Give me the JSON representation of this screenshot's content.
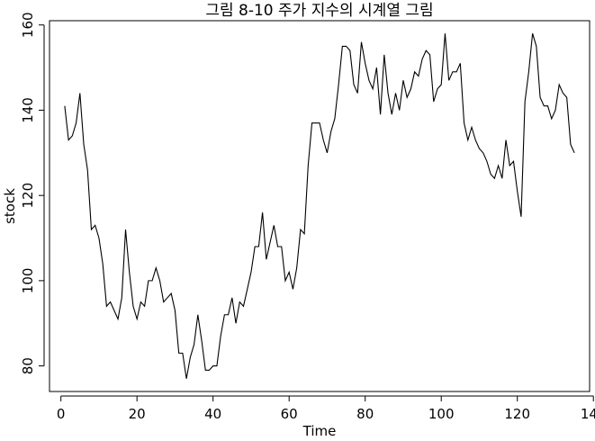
{
  "chart_data": {
    "type": "line",
    "title": "그림 8-10 주가 지수의 시계열 그림",
    "xlabel": "Time",
    "ylabel": "stock",
    "xlim": [
      -3,
      139
    ],
    "ylim": [
      74,
      161
    ],
    "xticks": [
      0,
      20,
      40,
      60,
      80,
      100,
      120,
      140
    ],
    "yticks": [
      80,
      100,
      120,
      140,
      160
    ],
    "grid": false,
    "series": [
      {
        "x": [
          1,
          2,
          3,
          4,
          5,
          6,
          7,
          8,
          9,
          10,
          11,
          12,
          13,
          14,
          15,
          16,
          17,
          18,
          19,
          20,
          21,
          22,
          23,
          24,
          25,
          26,
          27,
          28,
          29,
          30,
          31,
          32,
          33,
          34,
          35,
          36,
          37,
          38,
          39,
          40,
          41,
          42,
          43,
          44,
          45,
          46,
          47,
          48,
          49,
          50,
          51,
          52,
          53,
          54,
          55,
          56,
          57,
          58,
          59,
          60,
          61,
          62,
          63,
          64,
          65,
          66,
          67,
          68,
          69,
          70,
          71,
          72,
          73,
          74,
          75,
          76,
          77,
          78,
          79,
          80,
          81,
          82,
          83,
          84,
          85,
          86,
          87,
          88,
          89,
          90,
          91,
          92,
          93,
          94,
          95,
          96,
          97,
          98,
          99,
          100,
          101,
          102,
          103,
          104,
          105,
          106,
          107,
          108,
          109,
          110,
          111,
          112,
          113,
          114,
          115,
          116,
          117,
          118,
          119,
          120,
          121,
          122,
          123,
          124,
          125,
          126,
          127,
          128,
          129,
          130,
          131,
          132,
          133,
          134,
          135
        ],
        "y": [
          141,
          133,
          134,
          137,
          144,
          132,
          126,
          112,
          113,
          110,
          104,
          94,
          95,
          93,
          91,
          96,
          112,
          102,
          94,
          91,
          95,
          94,
          100,
          100,
          103,
          100,
          95,
          96,
          97,
          93,
          83,
          83,
          77,
          82,
          85,
          92,
          86,
          79,
          79,
          80,
          80,
          87,
          92,
          92,
          96,
          90,
          95,
          94,
          98,
          102,
          108,
          108,
          116,
          105,
          109,
          113,
          108,
          108,
          100,
          102,
          98,
          103,
          112,
          111,
          127,
          137,
          137,
          137,
          133,
          130,
          135,
          138,
          146,
          155,
          155,
          154,
          146,
          144,
          156,
          151,
          147,
          145,
          150,
          139,
          153,
          144,
          139,
          144,
          140,
          147,
          143,
          145,
          149,
          148,
          152,
          154,
          153,
          142,
          145,
          146,
          158,
          147,
          149,
          149,
          151,
          137,
          133,
          136,
          133,
          131,
          130,
          128,
          125,
          124,
          127,
          124,
          133,
          127,
          128,
          121,
          115,
          142,
          149,
          158,
          155,
          143,
          141,
          141,
          138,
          140,
          146,
          144,
          143,
          132,
          130
        ]
      }
    ]
  }
}
